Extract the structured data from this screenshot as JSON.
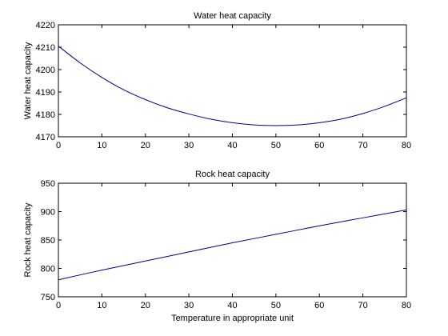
{
  "chart_data": [
    {
      "type": "line",
      "title": "Water heat capacity",
      "xlabel": "",
      "ylabel": "Water heat capacity",
      "xlim": [
        0,
        80
      ],
      "ylim": [
        4170,
        4220
      ],
      "xticks": [
        0,
        10,
        20,
        30,
        40,
        50,
        60,
        70,
        80
      ],
      "yticks": [
        4170,
        4180,
        4190,
        4200,
        4210,
        4220
      ],
      "grid": false,
      "color": "#00008B",
      "series": [
        {
          "x": [
            0,
            5,
            10,
            15,
            20,
            25,
            30,
            35,
            40,
            45,
            50,
            55,
            60,
            65,
            70,
            75,
            80
          ],
          "y": [
            4210.5,
            4203.0,
            4196.5,
            4191.0,
            4186.6,
            4183.0,
            4180.2,
            4177.9,
            4176.3,
            4175.3,
            4175.0,
            4175.3,
            4176.3,
            4177.9,
            4180.4,
            4183.6,
            4187.4
          ]
        }
      ]
    },
    {
      "type": "line",
      "title": "Rock heat capacity",
      "xlabel": "Temperature in appropriate unit",
      "ylabel": "Rock heat capacity",
      "xlim": [
        0,
        80
      ],
      "ylim": [
        750,
        950
      ],
      "xticks": [
        0,
        10,
        20,
        30,
        40,
        50,
        60,
        70,
        80
      ],
      "yticks": [
        750,
        800,
        850,
        900,
        950
      ],
      "grid": false,
      "color": "#00008B",
      "series": [
        {
          "x": [
            0,
            10,
            20,
            30,
            40,
            50,
            60,
            70,
            80
          ],
          "y": [
            780,
            797,
            813,
            829,
            845,
            860,
            875,
            889,
            903
          ]
        }
      ]
    }
  ]
}
